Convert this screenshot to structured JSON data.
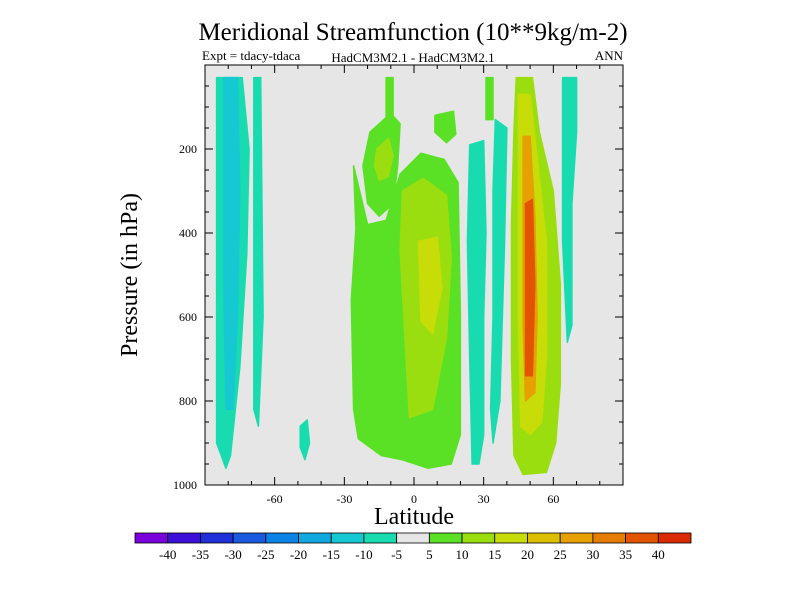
{
  "chart_data": {
    "type": "heatmap",
    "title": "Meridional Streamfunction (10**9kg/m-2)",
    "subtitle_left": "Expt = tdacy-tdaca",
    "subtitle_center": "HadCM3M2.1 - HadCM3M2.1",
    "subtitle_right": "ANN",
    "xlabel": "Latitude",
    "ylabel": "Pressure (in hPa)",
    "xlim": [
      -90,
      90
    ],
    "ylim": [
      1000,
      0
    ],
    "xticks": [
      -60,
      -30,
      0,
      30,
      60
    ],
    "yticks": [
      200,
      400,
      600,
      800,
      1000
    ],
    "background_color": "#e6e6e6",
    "colorbar": {
      "bounds": [
        -40,
        -35,
        -30,
        -25,
        -20,
        -15,
        -10,
        -5,
        5,
        10,
        15,
        20,
        25,
        30,
        35,
        40
      ],
      "labels": [
        "-40",
        "-35",
        "-30",
        "-25",
        "-20",
        "-15",
        "-10",
        "-5",
        "5",
        "10",
        "15",
        "20",
        "25",
        "30",
        "35",
        "40"
      ],
      "colors": [
        "#7a00dc",
        "#3c10d8",
        "#2030d8",
        "#1a5ae0",
        "#0a82e6",
        "#10a8e0",
        "#16c8d2",
        "#18dcb0",
        "#e6e6e6",
        "#5ae024",
        "#9ade10",
        "#c8dc08",
        "#dcc000",
        "#e6a000",
        "#e67c00",
        "#e25400",
        "#dc2a00"
      ]
    },
    "regions": [
      {
        "name": "sh-negative-outer",
        "value": -8,
        "lat": [
          [
            -85,
            30
          ],
          [
            -74,
            30
          ],
          [
            -71,
            200
          ],
          [
            -72,
            450
          ],
          [
            -75,
            720
          ],
          [
            -79,
            930
          ],
          [
            -81,
            960
          ],
          [
            -85,
            900
          ]
        ]
      },
      {
        "name": "sh-negative-core",
        "value": -13,
        "lat": [
          [
            -82,
            30
          ],
          [
            -76,
            30
          ],
          [
            -75,
            300
          ],
          [
            -76,
            600
          ],
          [
            -78,
            820
          ],
          [
            -81,
            820
          ],
          [
            -82,
            500
          ]
        ]
      },
      {
        "name": "sh-negative-side",
        "value": -7,
        "lat": [
          [
            -69,
            30
          ],
          [
            -66,
            30
          ],
          [
            -65,
            600
          ],
          [
            -67,
            860
          ],
          [
            -69,
            820
          ]
        ]
      },
      {
        "name": "sh-negative-spot",
        "value": -7,
        "lat": [
          [
            -49,
            860
          ],
          [
            -46,
            845
          ],
          [
            -45,
            900
          ],
          [
            -47,
            940
          ],
          [
            -49,
            910
          ]
        ]
      },
      {
        "name": "tropics-positive-upper",
        "value": 7,
        "lat": [
          [
            -19,
            160
          ],
          [
            -10,
            115
          ],
          [
            -6,
            140
          ],
          [
            -7,
            240
          ],
          [
            -9,
            330
          ],
          [
            -15,
            360
          ],
          [
            -20,
            330
          ],
          [
            -22,
            240
          ]
        ]
      },
      {
        "name": "tropics-positive-upper-core",
        "value": 12,
        "lat": [
          [
            -16,
            200
          ],
          [
            -11,
            175
          ],
          [
            -9,
            215
          ],
          [
            -11,
            265
          ],
          [
            -15,
            275
          ],
          [
            -17,
            240
          ]
        ]
      },
      {
        "name": "tropics-positive-thin",
        "value": 7,
        "lat": [
          [
            -12,
            30
          ],
          [
            -9,
            30
          ],
          [
            -9,
            120
          ],
          [
            -12,
            125
          ]
        ]
      },
      {
        "name": "tropics-positive-main",
        "value": 8,
        "lat": [
          [
            -26,
            240
          ],
          [
            -25,
            390
          ],
          [
            -27,
            560
          ],
          [
            -26,
            820
          ],
          [
            -24,
            890
          ],
          [
            -14,
            930
          ],
          [
            -5,
            940
          ],
          [
            6,
            960
          ],
          [
            16,
            950
          ],
          [
            20,
            880
          ],
          [
            20,
            600
          ],
          [
            19,
            280
          ],
          [
            13,
            225
          ],
          [
            3,
            210
          ],
          [
            -6,
            260
          ],
          [
            -12,
            370
          ],
          [
            -20,
            380
          ]
        ]
      },
      {
        "name": "tropics-positive-main-core",
        "value": 13,
        "lat": [
          [
            -5,
            300
          ],
          [
            4,
            270
          ],
          [
            14,
            310
          ],
          [
            16,
            460
          ],
          [
            14,
            650
          ],
          [
            8,
            820
          ],
          [
            -2,
            840
          ],
          [
            -4,
            640
          ],
          [
            -6,
            440
          ]
        ]
      },
      {
        "name": "tropics-positive-main-inner",
        "value": 18,
        "lat": [
          [
            2,
            420
          ],
          [
            10,
            410
          ],
          [
            12,
            530
          ],
          [
            8,
            640
          ],
          [
            3,
            610
          ]
        ]
      },
      {
        "name": "tropics-positive-upper-right",
        "value": 7,
        "lat": [
          [
            9,
            120
          ],
          [
            17,
            110
          ],
          [
            18,
            165
          ],
          [
            14,
            185
          ],
          [
            9,
            160
          ]
        ]
      },
      {
        "name": "tropics-negative-column",
        "value": -8,
        "lat": [
          [
            24,
            190
          ],
          [
            30,
            180
          ],
          [
            31,
            400
          ],
          [
            30,
            600
          ],
          [
            30,
            880
          ],
          [
            28,
            950
          ],
          [
            25,
            950
          ],
          [
            24,
            700
          ],
          [
            23,
            420
          ]
        ]
      },
      {
        "name": "tropics-negative-side",
        "value": -6,
        "lat": [
          [
            35,
            130
          ],
          [
            40,
            150
          ],
          [
            39,
            420
          ],
          [
            37,
            800
          ],
          [
            34,
            900
          ],
          [
            33,
            820
          ],
          [
            34,
            600
          ],
          [
            34,
            300
          ]
        ]
      },
      {
        "name": "tropics-positive-right-thin",
        "value": 7,
        "lat": [
          [
            31,
            30
          ],
          [
            34,
            30
          ],
          [
            34,
            130
          ],
          [
            31,
            130
          ]
        ]
      },
      {
        "name": "nh-positive-outer",
        "value": 10,
        "lat": [
          [
            44,
            30
          ],
          [
            51,
            30
          ],
          [
            54,
            160
          ],
          [
            60,
            300
          ],
          [
            63,
            520
          ],
          [
            63,
            760
          ],
          [
            61,
            900
          ],
          [
            57,
            970
          ],
          [
            47,
            975
          ],
          [
            43,
            930
          ],
          [
            42,
            700
          ],
          [
            42,
            380
          ],
          [
            43,
            160
          ]
        ]
      },
      {
        "name": "nh-positive-mid",
        "value": 18,
        "lat": [
          [
            45,
            70
          ],
          [
            50,
            70
          ],
          [
            53,
            220
          ],
          [
            57,
            420
          ],
          [
            57,
            700
          ],
          [
            55,
            850
          ],
          [
            50,
            880
          ],
          [
            46,
            860
          ],
          [
            45,
            620
          ],
          [
            45,
            340
          ]
        ]
      },
      {
        "name": "nh-positive-inner",
        "value": 28,
        "lat": [
          [
            47,
            170
          ],
          [
            50,
            170
          ],
          [
            52,
            360
          ],
          [
            53,
            600
          ],
          [
            52,
            780
          ],
          [
            48,
            800
          ],
          [
            47,
            620
          ],
          [
            47,
            360
          ]
        ]
      },
      {
        "name": "nh-positive-core",
        "value": 36,
        "lat": [
          [
            48,
            330
          ],
          [
            51,
            320
          ],
          [
            52,
            520
          ],
          [
            51,
            740
          ],
          [
            48,
            740
          ]
        ]
      },
      {
        "name": "nh-negative-right",
        "value": -8,
        "lat": [
          [
            64,
            30
          ],
          [
            70,
            30
          ],
          [
            70,
            160
          ],
          [
            68,
            330
          ],
          [
            68,
            620
          ],
          [
            66,
            660
          ],
          [
            64,
            420
          ]
        ]
      }
    ]
  }
}
